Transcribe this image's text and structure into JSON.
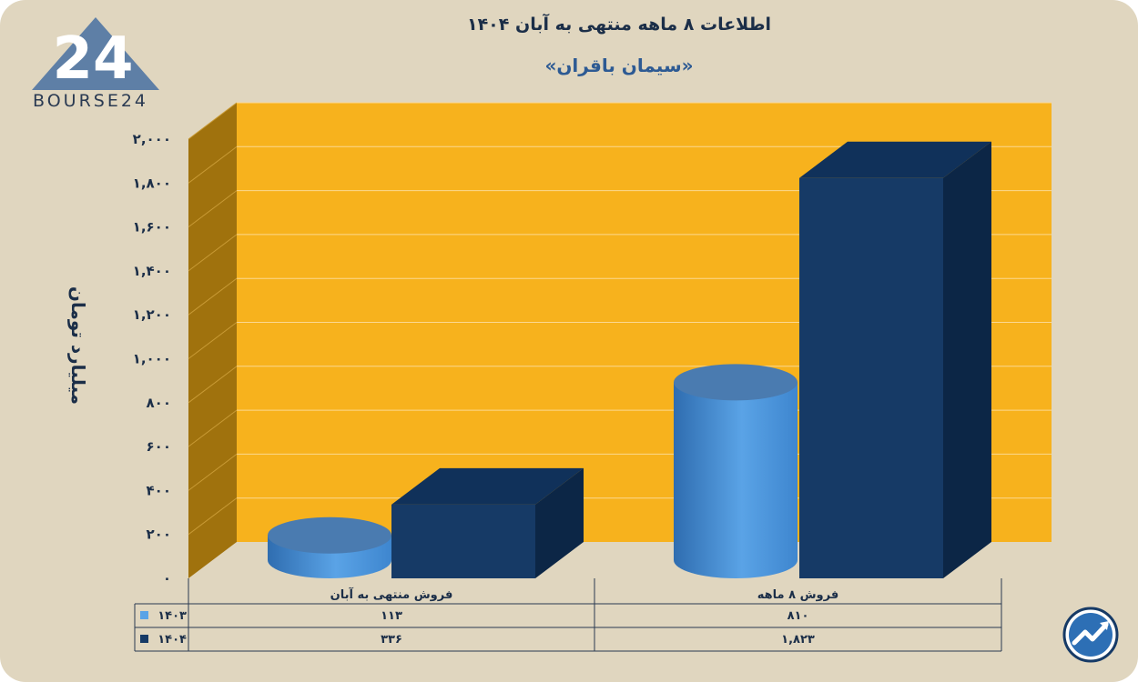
{
  "header": {
    "title": "اطلاعات ۸ ماهه منتهی به آبان ۱۴۰۴",
    "subtitle": "«سیمان باقران»"
  },
  "brand": {
    "logo_text": "BOURSE24",
    "logo_mark": "24",
    "badge_icon": "trend-arrow-icon"
  },
  "colors": {
    "background": "#e0d6bf",
    "plot_back": "#f7b21d",
    "plot_side": "#a0720d",
    "series_1403": "#5aa3e6",
    "series_1404": "#163a66"
  },
  "chart_data": {
    "type": "bar",
    "ylabel": "میلیارد تومان",
    "ylim": [
      0,
      2000
    ],
    "y_ticks": [
      "۰",
      "۲۰۰",
      "۴۰۰",
      "۶۰۰",
      "۸۰۰",
      "۱,۰۰۰",
      "۱,۲۰۰",
      "۱,۴۰۰",
      "۱,۶۰۰",
      "۱,۸۰۰",
      "۲,۰۰۰"
    ],
    "categories": [
      "فروش منتهی به  آبان",
      "فروش  ۸  ماهه"
    ],
    "series": [
      {
        "name": "۱۴۰۳",
        "values": [
          113,
          810
        ],
        "value_labels": [
          "۱۱۳",
          "۸۱۰"
        ],
        "color": "#5aa3e6",
        "shape": "cylinder"
      },
      {
        "name": "۱۴۰۴",
        "values": [
          336,
          1823
        ],
        "value_labels": [
          "۳۳۶",
          "۱,۸۲۳"
        ],
        "color": "#163a66",
        "shape": "box"
      }
    ],
    "grid": true,
    "legend": "data-table"
  }
}
